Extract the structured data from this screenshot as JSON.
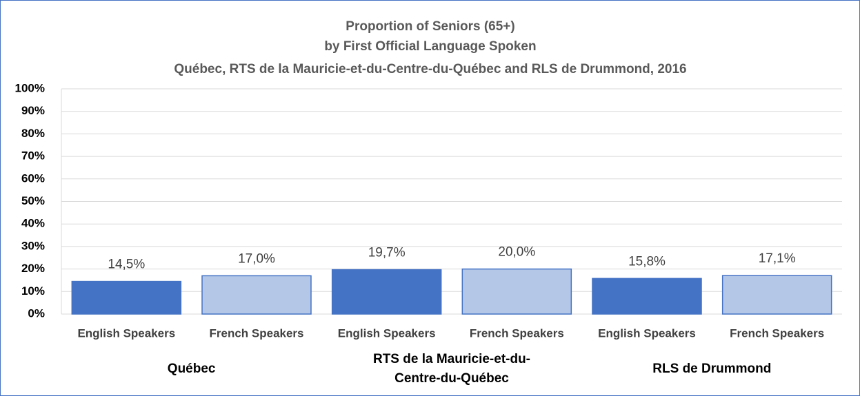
{
  "chart_data": {
    "type": "bar",
    "title": [
      "Proportion of Seniors (65+)",
      "by First Official Language Spoken",
      "Québec, RTS de la Mauricie-et-du-Centre-du-Québec  and RLS de Drummond, 2016"
    ],
    "categories": [
      "English Speakers",
      "French Speakers",
      "English Speakers",
      "French Speakers",
      "English Speakers",
      "French Speakers"
    ],
    "groups": [
      "Québec",
      "RTS de la Mauricie-et-du-Centre-du-Québec",
      "RLS de Drummond"
    ],
    "values": [
      14.5,
      17.0,
      19.7,
      20.0,
      15.8,
      17.1
    ],
    "value_labels": [
      "14,5%",
      "17,0%",
      "19,7%",
      "20,0%",
      "15,8%",
      "17,1%"
    ],
    "colors": [
      "#4472c4",
      "#b4c7e7"
    ],
    "ylim": [
      0,
      100
    ],
    "yticks": [
      {
        "value": 0,
        "label": "0%"
      },
      {
        "value": 10,
        "label": "10%"
      },
      {
        "value": 20,
        "label": "20%"
      },
      {
        "value": 30,
        "label": "30%"
      },
      {
        "value": 40,
        "label": "40%"
      },
      {
        "value": 50,
        "label": "50%"
      },
      {
        "value": 60,
        "label": "60%"
      },
      {
        "value": 70,
        "label": "70%"
      },
      {
        "value": 80,
        "label": "80%"
      },
      {
        "value": 90,
        "label": "90%"
      },
      {
        "value": 100,
        "label": "100%"
      }
    ],
    "grid": true
  }
}
